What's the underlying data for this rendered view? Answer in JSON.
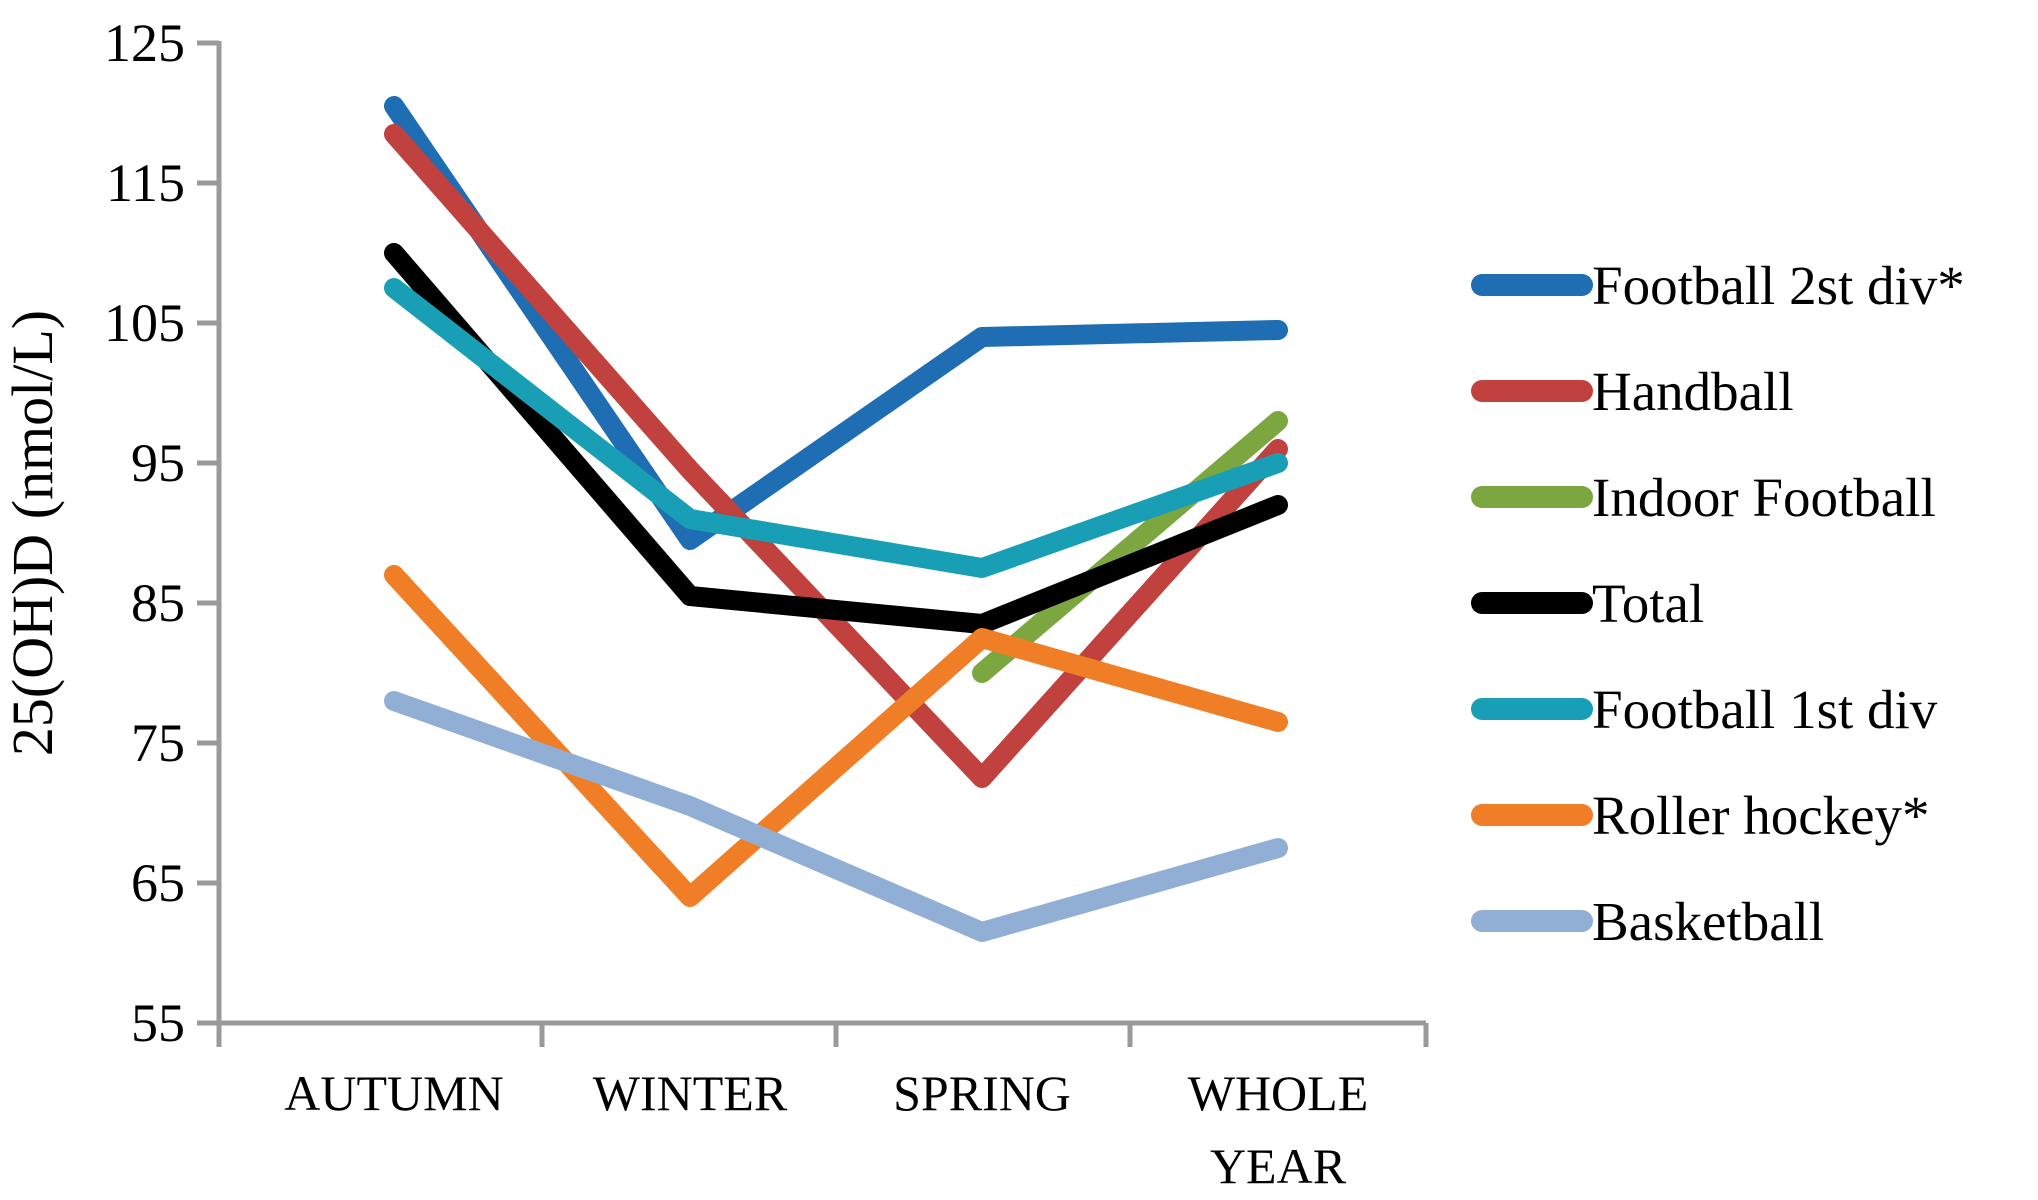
{
  "chart_data": {
    "type": "line",
    "title": "",
    "xlabel": "",
    "ylabel": "25(OH)D (nmol/L)",
    "categories": [
      "AUTUMN",
      "WINTER",
      "SPRING",
      "WHOLE YEAR"
    ],
    "y_ticks": [
      55,
      65,
      75,
      85,
      95,
      105,
      115,
      125
    ],
    "ylim": [
      55,
      125
    ],
    "grid": false,
    "legend_position": "right",
    "axis_color": "#9A9A9A",
    "text_color": "#000000",
    "series": [
      {
        "name": "Football 2st div*",
        "color": "#1F6DB3",
        "values": [
          120.5,
          89.5,
          104,
          104.5
        ]
      },
      {
        "name": "Handball",
        "color": "#C0413E",
        "values": [
          118.5,
          94.5,
          72.5,
          96
        ]
      },
      {
        "name": "Indoor Football",
        "color": "#7BA640",
        "values": [
          null,
          null,
          80,
          98
        ]
      },
      {
        "name": "Total",
        "color": "#000000",
        "values": [
          110,
          85.5,
          83.5,
          92
        ]
      },
      {
        "name": "Football 1st div",
        "color": "#189FB5",
        "values": [
          107.5,
          91,
          87.5,
          95
        ]
      },
      {
        "name": "Roller hockey*",
        "color": "#F07E26",
        "values": [
          87,
          64,
          82.5,
          76.5
        ]
      },
      {
        "name": "Basketball",
        "color": "#91AFD5",
        "values": [
          78,
          70.5,
          61.5,
          67.5
        ]
      }
    ]
  }
}
